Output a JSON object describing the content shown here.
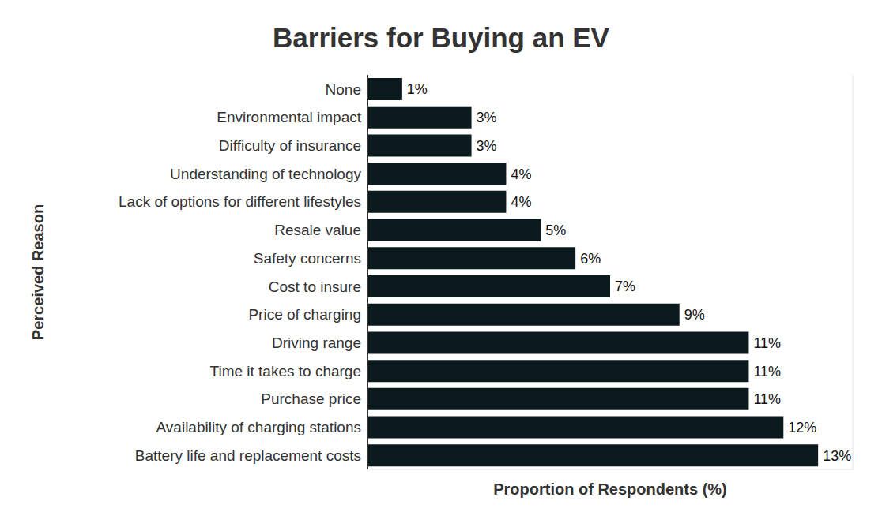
{
  "chart_data": {
    "type": "bar",
    "title": "Barriers for Buying an EV",
    "x_label": "Proportion of Respondents (%)",
    "y_label": "Perceived Reason",
    "orientation": "horizontal",
    "categories": [
      "None",
      "Environmental impact",
      "Difficulty of insurance",
      "Understanding of technology",
      "Lack of options for different lifestyles",
      "Resale value",
      "Safety concerns",
      "Cost to insure",
      "Price of charging",
      "Driving range",
      "Time it takes to charge",
      "Purchase price",
      "Availability of charging stations",
      "Battery life and replacement costs"
    ],
    "values": [
      1,
      3,
      3,
      4,
      4,
      5,
      6,
      7,
      9,
      11,
      11,
      11,
      12,
      13
    ],
    "value_labels": [
      "1%",
      "3%",
      "3%",
      "4%",
      "4%",
      "5%",
      "6%",
      "7%",
      "9%",
      "11%",
      "11%",
      "11%",
      "12%",
      "13%"
    ],
    "color": "#0a1a1d",
    "xlim": [
      0,
      14
    ],
    "xticks": [
      0,
      2,
      4,
      6,
      8,
      10,
      12,
      14
    ],
    "grid": true,
    "data_labels": true,
    "tick_labels": "y"
  }
}
